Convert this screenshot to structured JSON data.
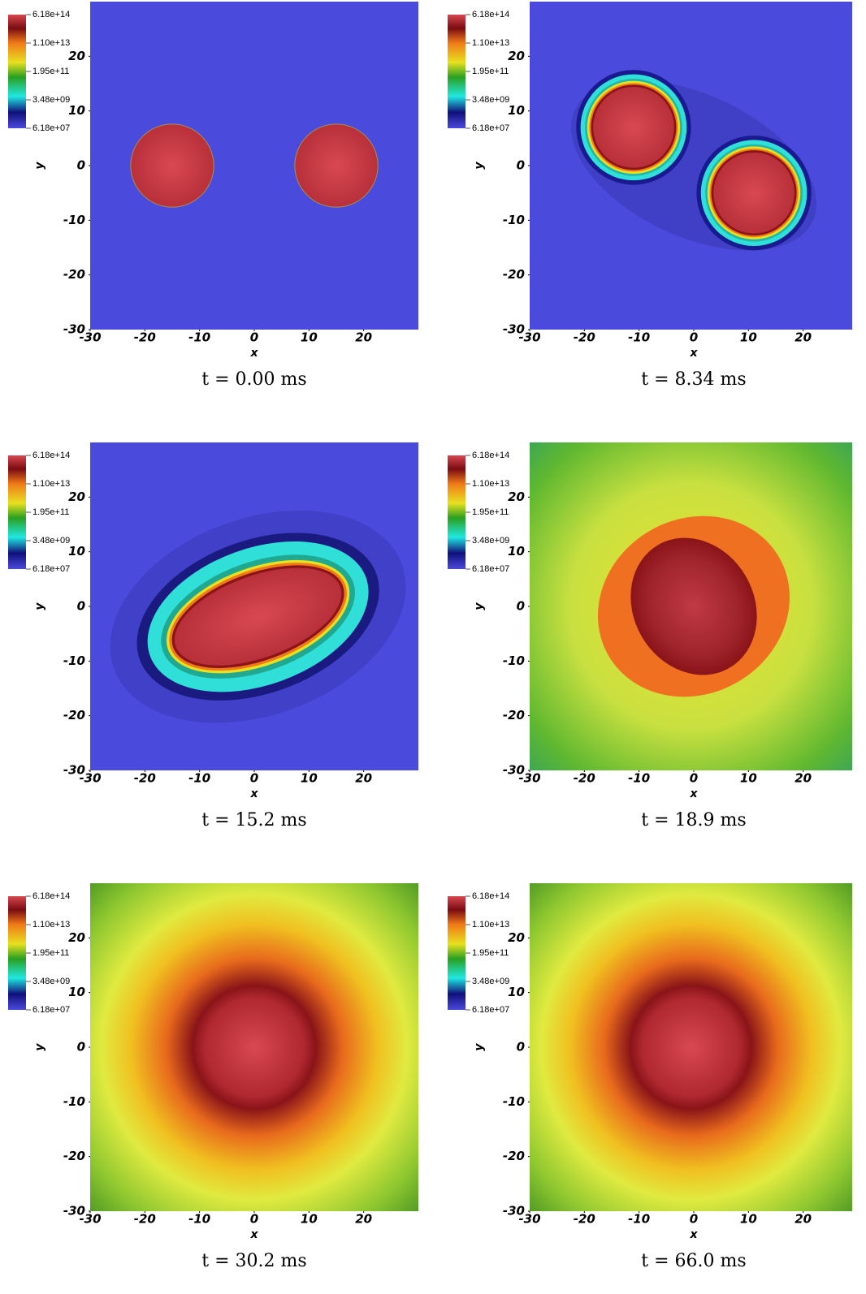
{
  "panels": [
    {
      "caption": "t = 0.00 ms",
      "xlabel": "x",
      "ylabel": "y",
      "xlim": [
        -30,
        30
      ],
      "ylim": [
        -30,
        30
      ],
      "xticks": [
        -30,
        -20,
        -10,
        0,
        10,
        20
      ],
      "yticks": [
        -30,
        -20,
        -10,
        0,
        10,
        20
      ],
      "colorbar": {
        "log_scale": true,
        "lim": [
          61800000.0,
          618000000000000.0
        ],
        "ticks": [
          {
            "value": 618000000000000.0,
            "label": "6.18e+14"
          },
          {
            "value": 11000000000000.0,
            "label": "1.10e+13"
          },
          {
            "value": 195000000000.0,
            "label": "1.95e+11"
          },
          {
            "value": 3480000000.0,
            "label": "3.48e+09"
          },
          {
            "value": 61800000.0,
            "label": "6.18e+07"
          }
        ]
      }
    },
    {
      "caption": "t = 8.34 ms",
      "xlabel": "x",
      "ylabel": "y",
      "xlim": [
        -30,
        30
      ],
      "ylim": [
        -30,
        30
      ],
      "xticks": [
        -30,
        -20,
        -10,
        0,
        10,
        20
      ],
      "yticks": [
        -30,
        -20,
        -10,
        0,
        10,
        20
      ],
      "colorbar": {
        "log_scale": true,
        "lim": [
          61800000.0,
          618000000000000.0
        ],
        "ticks": [
          {
            "value": 618000000000000.0,
            "label": "6.18e+14"
          },
          {
            "value": 11000000000000.0,
            "label": "1.10e+13"
          },
          {
            "value": 195000000000.0,
            "label": "1.95e+11"
          },
          {
            "value": 3480000000.0,
            "label": "3.48e+09"
          },
          {
            "value": 61800000.0,
            "label": "6.18e+07"
          }
        ]
      }
    },
    {
      "caption": "t = 15.2 ms",
      "xlabel": "x",
      "ylabel": "y",
      "xlim": [
        -30,
        30
      ],
      "ylim": [
        -30,
        30
      ],
      "xticks": [
        -30,
        -20,
        -10,
        0,
        10,
        20
      ],
      "yticks": [
        -30,
        -20,
        -10,
        0,
        10,
        20
      ],
      "colorbar": {
        "log_scale": true,
        "lim": [
          61800000.0,
          618000000000000.0
        ],
        "ticks": [
          {
            "value": 618000000000000.0,
            "label": "6.18e+14"
          },
          {
            "value": 11000000000000.0,
            "label": "1.10e+13"
          },
          {
            "value": 195000000000.0,
            "label": "1.95e+11"
          },
          {
            "value": 3480000000.0,
            "label": "3.48e+09"
          },
          {
            "value": 61800000.0,
            "label": "6.18e+07"
          }
        ]
      }
    },
    {
      "caption": "t = 18.9 ms",
      "xlabel": "x",
      "ylabel": "y",
      "xlim": [
        -30,
        30
      ],
      "ylim": [
        -30,
        30
      ],
      "xticks": [
        -30,
        -20,
        -10,
        0,
        10,
        20
      ],
      "yticks": [
        -30,
        -20,
        -10,
        0,
        10,
        20
      ],
      "colorbar": {
        "log_scale": true,
        "lim": [
          61800000.0,
          618000000000000.0
        ],
        "ticks": [
          {
            "value": 618000000000000.0,
            "label": "6.18e+14"
          },
          {
            "value": 11000000000000.0,
            "label": "1.10e+13"
          },
          {
            "value": 195000000000.0,
            "label": "1.95e+11"
          },
          {
            "value": 3480000000.0,
            "label": "3.48e+09"
          },
          {
            "value": 61800000.0,
            "label": "6.18e+07"
          }
        ]
      }
    },
    {
      "caption": "t = 30.2 ms",
      "xlabel": "x",
      "ylabel": "y",
      "xlim": [
        -30,
        30
      ],
      "ylim": [
        -30,
        30
      ],
      "xticks": [
        -30,
        -20,
        -10,
        0,
        10,
        20
      ],
      "yticks": [
        -30,
        -20,
        -10,
        0,
        10,
        20
      ],
      "colorbar": {
        "log_scale": true,
        "lim": [
          61800000.0,
          618000000000000.0
        ],
        "ticks": [
          {
            "value": 618000000000000.0,
            "label": "6.18e+14"
          },
          {
            "value": 11000000000000.0,
            "label": "1.10e+13"
          },
          {
            "value": 195000000000.0,
            "label": "1.95e+11"
          },
          {
            "value": 3480000000.0,
            "label": "3.48e+09"
          },
          {
            "value": 61800000.0,
            "label": "6.18e+07"
          }
        ]
      }
    },
    {
      "caption": "t = 66.0 ms",
      "xlabel": "x",
      "ylabel": "y",
      "xlim": [
        -30,
        30
      ],
      "ylim": [
        -30,
        30
      ],
      "xticks": [
        -30,
        -20,
        -10,
        0,
        10,
        20
      ],
      "yticks": [
        -30,
        -20,
        -10,
        0,
        10,
        20
      ],
      "colorbar": {
        "log_scale": true,
        "lim": [
          61800000.0,
          618000000000000.0
        ],
        "ticks": [
          {
            "value": 618000000000000.0,
            "label": "6.18e+14"
          },
          {
            "value": 11000000000000.0,
            "label": "1.10e+13"
          },
          {
            "value": 195000000000.0,
            "label": "1.95e+11"
          },
          {
            "value": 3480000000.0,
            "label": "3.48e+09"
          },
          {
            "value": 61800000.0,
            "label": "6.18e+07"
          }
        ]
      }
    }
  ]
}
